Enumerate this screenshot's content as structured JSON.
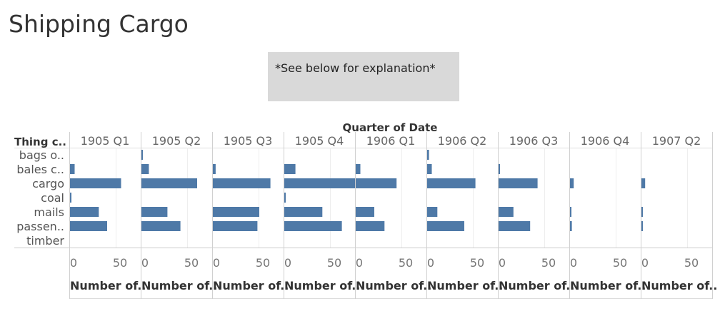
{
  "title": "Shipping Cargo",
  "note": "*See below for explanation*",
  "chart_data": {
    "type": "bar",
    "column_header_title": "Quarter of Date",
    "row_header_title": "Thing c..",
    "quarters": [
      "1905 Q1",
      "1905 Q2",
      "1905 Q3",
      "1905 Q4",
      "1906 Q1",
      "1906 Q2",
      "1906 Q3",
      "1906 Q4",
      "1907 Q2"
    ],
    "categories": [
      "bags o..",
      "bales c..",
      "cargo",
      "coal",
      "mails",
      "passen..",
      "timber"
    ],
    "series": [
      {
        "quarter": "1905 Q1",
        "values": [
          0,
          5,
          55,
          1,
          31,
          40,
          0
        ]
      },
      {
        "quarter": "1905 Q2",
        "values": [
          1,
          8,
          60,
          0,
          28,
          42,
          0
        ]
      },
      {
        "quarter": "1905 Q3",
        "values": [
          0,
          3,
          62,
          0,
          50,
          48,
          0
        ]
      },
      {
        "quarter": "1905 Q4",
        "values": [
          0,
          12,
          78,
          1,
          41,
          62,
          0
        ]
      },
      {
        "quarter": "1906 Q1",
        "values": [
          0,
          5,
          44,
          0,
          20,
          31,
          0
        ]
      },
      {
        "quarter": "1906 Q2",
        "values": [
          2,
          5,
          52,
          0,
          11,
          40,
          0
        ]
      },
      {
        "quarter": "1906 Q3",
        "values": [
          0,
          1,
          42,
          0,
          16,
          34,
          0
        ]
      },
      {
        "quarter": "1906 Q4",
        "values": [
          0,
          0,
          4,
          0,
          1,
          2,
          0
        ]
      },
      {
        "quarter": "1907 Q2",
        "values": [
          0,
          0,
          4,
          0,
          1,
          1,
          0
        ]
      }
    ],
    "x_ticks": [
      "0",
      "50"
    ],
    "x_axis_label": "Number of..",
    "xlim": [
      0,
      80
    ],
    "bar_color": "#4e79a7",
    "grid": true
  }
}
